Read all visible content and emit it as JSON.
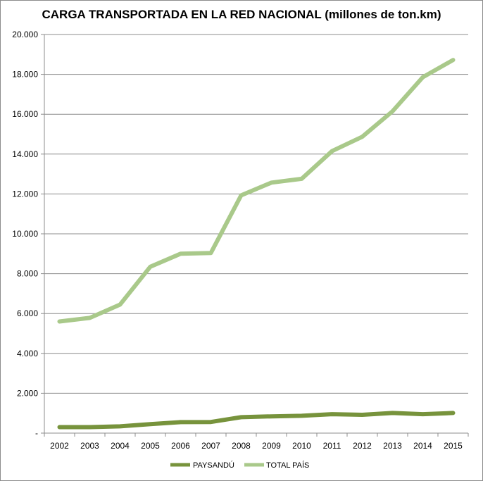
{
  "chart_data": {
    "type": "line",
    "title": "CARGA TRANSPORTADA EN LA RED NACIONAL (millones de ton.km)",
    "xlabel": "",
    "ylabel": "",
    "categories": [
      "2002",
      "2003",
      "2004",
      "2005",
      "2006",
      "2007",
      "2008",
      "2009",
      "2010",
      "2011",
      "2012",
      "2013",
      "2014",
      "2015"
    ],
    "yticks": [
      "-",
      "2.000",
      "4.000",
      "6.000",
      "8.000",
      "10.000",
      "12.000",
      "14.000",
      "16.000",
      "18.000",
      "20.000"
    ],
    "ylim": [
      0,
      20000
    ],
    "grid": true,
    "legend_position": "bottom",
    "series": [
      {
        "name": "PAYSANDÚ",
        "color": "#77933c",
        "values": [
          300,
          300,
          340,
          450,
          550,
          560,
          800,
          840,
          870,
          950,
          920,
          1010,
          950,
          1010
        ]
      },
      {
        "name": "TOTAL PAÍS",
        "color": "#a9c98a",
        "values": [
          5600,
          5780,
          6450,
          8350,
          9000,
          9040,
          11930,
          12570,
          12760,
          14150,
          14870,
          16150,
          17860,
          18720
        ]
      }
    ]
  }
}
